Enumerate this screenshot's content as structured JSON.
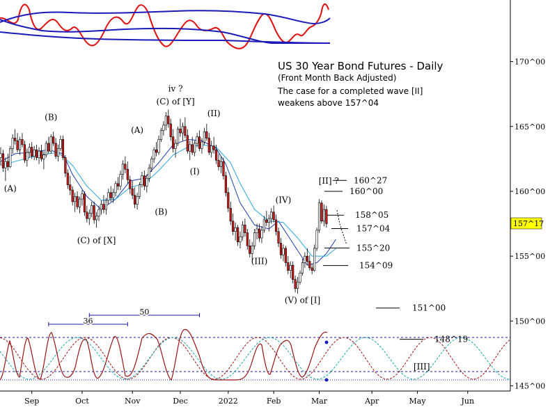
{
  "title": {
    "main": "US 30 Year Bond Futures - Daily",
    "sub": "(Front Month Back Adjusted)",
    "note1": "The case for a completed wave [II]",
    "note2": "weakens above 157^04"
  },
  "price_tag": {
    "label": "157^17",
    "value": 157.53
  },
  "y_axis_ticks": [
    {
      "label": "170^00",
      "value": 170
    },
    {
      "label": "165^00",
      "value": 165
    },
    {
      "label": "160^00",
      "value": 160
    },
    {
      "label": "155^00",
      "value": 155
    },
    {
      "label": "150^00",
      "value": 150
    },
    {
      "label": "145^00",
      "value": 145
    }
  ],
  "x_axis_labels": [
    "Sep",
    "Oct",
    "Nov",
    "Dec",
    "2022",
    "Feb",
    "Mar",
    "Apr",
    "May",
    "Jun"
  ],
  "wave_labels": [
    {
      "text": "(A)",
      "bar": 4,
      "price": 160.0
    },
    {
      "text": "(B)",
      "bar": 21,
      "price": 165.5
    },
    {
      "text": "(C) of [X]",
      "bar": 40,
      "price": 156.0
    },
    {
      "text": "(A)",
      "bar": 57,
      "price": 164.5
    },
    {
      "text": "(B)",
      "bar": 67,
      "price": 158.2
    },
    {
      "text": "iv ?",
      "bar": 73,
      "price": 167.7
    },
    {
      "text": "(C) of [Y]",
      "bar": 73,
      "price": 166.7
    },
    {
      "text": "(I)",
      "bar": 81,
      "price": 161.3
    },
    {
      "text": "(II)",
      "bar": 89,
      "price": 165.8
    },
    {
      "text": "(III)",
      "bar": 108,
      "price": 154.4
    },
    {
      "text": "(IV)",
      "bar": 118,
      "price": 159.1
    },
    {
      "text": "(V) of [I]",
      "bar": 126,
      "price": 151.4
    },
    {
      "text": "[II] ?",
      "bar": 137,
      "price": 160.6
    }
  ],
  "levels": [
    {
      "label": "160^27",
      "value": 160.84
    },
    {
      "label": "160^00",
      "value": 160.0
    },
    {
      "label": "158^05",
      "value": 158.16
    },
    {
      "label": "157^04",
      "value": 157.13
    },
    {
      "label": "155^20",
      "value": 155.63
    },
    {
      "label": "154^09",
      "value": 154.28
    },
    {
      "label": "151^00",
      "value": 151.0
    },
    {
      "label": "148^19",
      "value": 148.59
    }
  ],
  "cycle_labels": [
    {
      "text": "36",
      "bar_from": 20,
      "bar_to": 53
    },
    {
      "text": "50",
      "bar_from": 37,
      "bar_to": 83
    }
  ],
  "projection_label": "[III]",
  "colors": {
    "up": "#ffffff",
    "down": "#d11a1a",
    "ma_fast": "#1f3fb0",
    "ma_slow": "#2aa6d9",
    "osc_red": "#e01010",
    "osc_blue": "#1a1ab8",
    "cycle_a": "#a01010",
    "cycle_b": "#1aa6a6",
    "guide": "#1a1aa8"
  },
  "chart_data": {
    "type": "candlestick",
    "title": "US 30 Year Bond Futures - Daily",
    "subtitle": "(Front Month Back Adjusted)",
    "ylim": [
      144.6,
      174.0
    ],
    "x_range_bars": [
      0,
      212
    ],
    "series": [
      {
        "name": "",
        "values": [
          [
            162.6,
            163.4,
            162.0,
            162.9
          ],
          [
            162.9,
            163.2,
            161.5,
            161.8
          ],
          [
            161.8,
            162.6,
            160.8,
            162.3
          ],
          [
            162.3,
            162.9,
            161.6,
            161.9
          ],
          [
            161.9,
            163.5,
            161.8,
            163.3
          ],
          [
            163.3,
            164.4,
            162.9,
            164.1
          ],
          [
            164.1,
            164.8,
            163.6,
            163.9
          ],
          [
            163.9,
            164.5,
            163.0,
            163.2
          ],
          [
            163.2,
            164.2,
            162.8,
            164.0
          ],
          [
            164.0,
            164.5,
            163.4,
            163.6
          ],
          [
            163.6,
            163.9,
            162.2,
            162.4
          ],
          [
            162.4,
            163.3,
            161.9,
            163.0
          ],
          [
            163.0,
            163.7,
            162.6,
            163.4
          ],
          [
            163.4,
            163.8,
            162.5,
            162.7
          ],
          [
            162.7,
            163.5,
            162.4,
            163.2
          ],
          [
            163.2,
            163.6,
            162.4,
            162.6
          ],
          [
            162.6,
            163.4,
            162.1,
            163.1
          ],
          [
            163.1,
            163.6,
            162.3,
            162.5
          ],
          [
            162.5,
            163.1,
            161.7,
            162.8
          ],
          [
            162.8,
            163.9,
            162.6,
            163.7
          ],
          [
            163.7,
            164.2,
            162.9,
            163.1
          ],
          [
            163.1,
            164.4,
            162.9,
            164.2
          ],
          [
            164.2,
            164.6,
            163.5,
            163.7
          ],
          [
            163.7,
            164.1,
            162.5,
            162.7
          ],
          [
            162.7,
            163.6,
            162.3,
            163.3
          ],
          [
            163.3,
            164.3,
            163.1,
            164.0
          ],
          [
            164.0,
            164.3,
            162.4,
            162.6
          ],
          [
            162.6,
            162.8,
            161.1,
            161.4
          ],
          [
            161.4,
            161.7,
            160.2,
            160.5
          ],
          [
            160.5,
            161.2,
            159.7,
            160.1
          ],
          [
            160.1,
            160.4,
            158.9,
            159.2
          ],
          [
            159.2,
            159.9,
            158.4,
            159.6
          ],
          [
            159.6,
            160.0,
            158.6,
            158.8
          ],
          [
            158.8,
            159.6,
            158.3,
            159.4
          ],
          [
            159.4,
            160.1,
            158.9,
            159.8
          ],
          [
            159.8,
            160.0,
            158.1,
            158.4
          ],
          [
            158.4,
            158.9,
            157.6,
            157.9
          ],
          [
            157.9,
            158.6,
            157.4,
            158.3
          ],
          [
            158.3,
            159.2,
            158.0,
            158.9
          ],
          [
            158.9,
            159.2,
            157.5,
            157.8
          ],
          [
            157.8,
            158.4,
            157.2,
            158.1
          ],
          [
            158.1,
            158.9,
            157.7,
            158.6
          ],
          [
            158.6,
            159.3,
            158.2,
            159.0
          ],
          [
            159.0,
            159.7,
            158.3,
            158.6
          ],
          [
            158.6,
            159.5,
            158.2,
            159.3
          ],
          [
            159.3,
            160.2,
            159.0,
            159.9
          ],
          [
            159.9,
            160.4,
            159.2,
            159.5
          ],
          [
            159.5,
            160.2,
            159.1,
            159.9
          ],
          [
            159.9,
            160.8,
            159.6,
            160.6
          ],
          [
            160.6,
            161.1,
            160.1,
            160.4
          ],
          [
            160.4,
            161.6,
            160.1,
            161.3
          ],
          [
            161.3,
            162.4,
            160.9,
            162.1
          ],
          [
            162.1,
            162.7,
            161.4,
            161.7
          ],
          [
            161.7,
            162.3,
            160.6,
            160.9
          ],
          [
            160.9,
            161.2,
            159.8,
            160.2
          ],
          [
            160.2,
            160.8,
            159.4,
            159.7
          ],
          [
            159.7,
            160.3,
            158.7,
            159.0
          ],
          [
            159.0,
            159.9,
            158.6,
            159.6
          ],
          [
            159.6,
            160.7,
            159.4,
            160.5
          ],
          [
            160.5,
            161.5,
            160.3,
            161.2
          ],
          [
            161.2,
            161.6,
            160.1,
            160.4
          ],
          [
            160.4,
            161.3,
            159.9,
            161.0
          ],
          [
            161.0,
            162.1,
            160.7,
            161.8
          ],
          [
            161.8,
            162.7,
            161.5,
            162.5
          ],
          [
            162.5,
            163.4,
            162.2,
            163.2
          ],
          [
            163.2,
            163.8,
            162.7,
            163.0
          ],
          [
            163.0,
            164.3,
            162.8,
            164.0
          ],
          [
            164.0,
            164.9,
            163.8,
            164.7
          ],
          [
            164.7,
            165.4,
            164.3,
            165.1
          ],
          [
            165.1,
            166.1,
            164.7,
            165.8
          ],
          [
            165.8,
            166.3,
            164.9,
            165.2
          ],
          [
            165.2,
            165.6,
            163.9,
            164.2
          ],
          [
            164.2,
            164.8,
            163.0,
            163.3
          ],
          [
            163.3,
            164.0,
            162.6,
            163.7
          ],
          [
            163.7,
            165.0,
            163.5,
            164.8
          ],
          [
            164.8,
            165.6,
            164.2,
            164.5
          ],
          [
            164.5,
            165.3,
            163.9,
            165.0
          ],
          [
            165.0,
            165.7,
            164.1,
            164.3
          ],
          [
            164.3,
            164.8,
            162.9,
            163.1
          ],
          [
            163.1,
            163.9,
            162.4,
            163.6
          ],
          [
            163.6,
            164.2,
            162.8,
            163.0
          ],
          [
            163.0,
            163.9,
            162.7,
            163.7
          ],
          [
            163.7,
            164.5,
            163.4,
            164.2
          ],
          [
            164.2,
            164.7,
            163.1,
            163.3
          ],
          [
            163.3,
            164.1,
            162.9,
            163.8
          ],
          [
            163.8,
            164.9,
            163.6,
            164.6
          ],
          [
            164.6,
            165.2,
            163.9,
            164.1
          ],
          [
            164.1,
            164.5,
            162.8,
            163.0
          ],
          [
            163.0,
            163.9,
            162.6,
            163.5
          ],
          [
            163.5,
            164.2,
            162.9,
            163.2
          ],
          [
            163.2,
            163.6,
            162.1,
            162.4
          ],
          [
            162.4,
            162.9,
            161.6,
            161.9
          ],
          [
            161.9,
            162.7,
            161.4,
            162.3
          ],
          [
            162.3,
            162.6,
            160.9,
            161.2
          ],
          [
            161.2,
            161.5,
            159.6,
            159.9
          ],
          [
            159.9,
            160.3,
            158.4,
            158.7
          ],
          [
            158.7,
            159.2,
            157.4,
            157.7
          ],
          [
            157.7,
            158.3,
            156.6,
            156.9
          ],
          [
            156.9,
            157.6,
            156.2,
            157.2
          ],
          [
            157.2,
            157.4,
            155.8,
            156.1
          ],
          [
            156.1,
            156.9,
            155.6,
            156.5
          ],
          [
            156.5,
            157.7,
            156.2,
            157.4
          ],
          [
            157.4,
            157.9,
            156.5,
            156.8
          ],
          [
            156.8,
            157.1,
            155.5,
            155.8
          ],
          [
            155.8,
            156.3,
            154.9,
            155.2
          ],
          [
            155.2,
            156.1,
            154.7,
            155.8
          ],
          [
            155.8,
            157.1,
            155.5,
            156.8
          ],
          [
            156.8,
            157.5,
            156.3,
            157.1
          ],
          [
            157.1,
            157.5,
            156.1,
            156.4
          ],
          [
            156.4,
            157.3,
            156.0,
            157.0
          ],
          [
            157.0,
            158.1,
            156.8,
            157.8
          ],
          [
            157.8,
            158.5,
            157.3,
            157.6
          ],
          [
            157.6,
            158.2,
            156.9,
            157.9
          ],
          [
            157.9,
            158.7,
            157.5,
            158.4
          ],
          [
            158.4,
            158.9,
            157.6,
            157.8
          ],
          [
            157.8,
            158.2,
            156.6,
            156.9
          ],
          [
            156.9,
            157.2,
            155.7,
            156.0
          ],
          [
            156.0,
            156.4,
            154.8,
            155.1
          ],
          [
            155.1,
            155.9,
            154.6,
            155.6
          ],
          [
            155.6,
            155.8,
            154.2,
            154.5
          ],
          [
            154.5,
            155.0,
            153.6,
            153.9
          ],
          [
            153.9,
            154.6,
            153.3,
            154.3
          ],
          [
            154.3,
            154.6,
            152.9,
            153.2
          ],
          [
            153.2,
            153.5,
            152.2,
            152.5
          ],
          [
            152.5,
            153.4,
            152.1,
            153.0
          ],
          [
            153.0,
            153.9,
            152.8,
            153.7
          ],
          [
            153.7,
            154.8,
            153.5,
            154.5
          ],
          [
            154.5,
            155.3,
            154.1,
            155.0
          ],
          [
            155.0,
            155.6,
            154.3,
            154.6
          ],
          [
            154.6,
            155.1,
            153.9,
            154.1
          ],
          [
            154.1,
            154.4,
            153.6,
            153.9
          ],
          [
            153.9,
            155.9,
            153.8,
            155.6
          ],
          [
            155.6,
            157.2,
            155.4,
            157.0
          ],
          [
            157.0,
            159.4,
            156.8,
            159.1
          ],
          [
            159.1,
            159.3,
            157.5,
            157.7
          ],
          [
            157.7,
            159.0,
            157.3,
            158.6
          ],
          [
            158.6,
            158.9,
            157.2,
            157.5
          ]
        ]
      },
      {
        "name": "",
        "type": "ma",
        "values": [
          [
            0,
            162.3
          ],
          [
            6,
            162.9
          ],
          [
            12,
            163.0
          ],
          [
            20,
            163.2
          ],
          [
            26,
            162.9
          ],
          [
            30,
            161.3
          ],
          [
            36,
            159.6
          ],
          [
            42,
            158.6
          ],
          [
            48,
            159.4
          ],
          [
            54,
            160.8
          ],
          [
            60,
            161.0
          ],
          [
            66,
            162.2
          ],
          [
            72,
            163.6
          ],
          [
            78,
            164.0
          ],
          [
            84,
            163.9
          ],
          [
            90,
            163.3
          ],
          [
            94,
            162.1
          ],
          [
            100,
            159.1
          ],
          [
            106,
            157.4
          ],
          [
            112,
            157.1
          ],
          [
            116,
            157.7
          ],
          [
            122,
            156.0
          ],
          [
            128,
            154.3
          ],
          [
            132,
            154.5
          ],
          [
            136,
            155.2
          ],
          [
            140,
            156.3
          ]
        ]
      },
      {
        "name": "",
        "type": "ma",
        "values": [
          [
            0,
            162.0
          ],
          [
            8,
            162.4
          ],
          [
            16,
            162.8
          ],
          [
            24,
            163.0
          ],
          [
            30,
            162.0
          ],
          [
            36,
            160.4
          ],
          [
            42,
            159.3
          ],
          [
            48,
            159.4
          ],
          [
            54,
            160.3
          ],
          [
            60,
            160.6
          ],
          [
            66,
            161.6
          ],
          [
            72,
            162.8
          ],
          [
            78,
            163.4
          ],
          [
            84,
            163.6
          ],
          [
            90,
            163.4
          ],
          [
            96,
            162.2
          ],
          [
            100,
            160.6
          ],
          [
            106,
            158.6
          ],
          [
            112,
            157.7
          ],
          [
            118,
            157.6
          ],
          [
            124,
            156.4
          ],
          [
            130,
            155.0
          ],
          [
            136,
            155.0
          ],
          [
            140,
            155.6
          ]
        ]
      }
    ],
    "legend": "none",
    "grid": false
  }
}
